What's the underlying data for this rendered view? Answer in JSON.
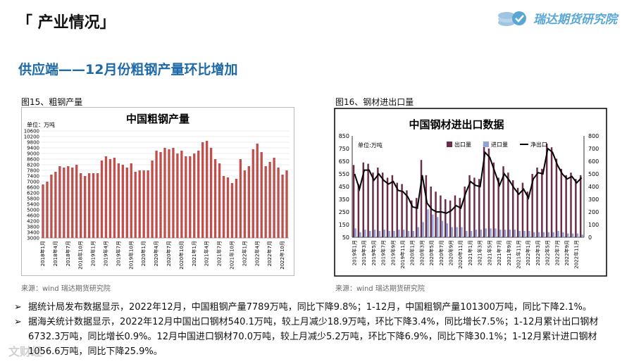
{
  "header": {
    "title": "「 产业情况」"
  },
  "logo": {
    "name": "瑞达期货研究院"
  },
  "subtitle": "供应端——12月份粗钢产量环比增加",
  "figures": [
    {
      "caption": "图15、粗钢产量",
      "source": "来源：wind   瑞达期货研究院"
    },
    {
      "caption": "图16、钢材进出口量",
      "source": "来源：wind   瑞达期货研究院"
    }
  ],
  "chart_data": [
    {
      "type": "bar",
      "title": "中国粗钢产量",
      "unit_label": "单位：万吨",
      "ylim": [
        3000,
        10600
      ],
      "yticks": [
        3000,
        3400,
        3800,
        4200,
        4600,
        5000,
        5400,
        5800,
        6200,
        6600,
        7000,
        7400,
        7800,
        8200,
        8600,
        9000,
        9400,
        9800,
        10200,
        10600
      ],
      "ytick_labels": [
        "3000",
        "3400",
        "3800",
        "4200",
        "4600",
        "5000",
        "5400",
        "5800",
        "6200",
        "6600",
        "7000",
        "7400",
        "7800",
        "8200",
        "8600",
        "9000",
        "9400",
        "9800",
        "10200",
        "10600"
      ],
      "xtick_labels": [
        "2018年1月",
        "2018年4月",
        "2018年7月",
        "2018年10月",
        "2019年1月",
        "2019年4月",
        "2019年7月",
        "2019年10月",
        "2020年1月",
        "2020年4月",
        "2020年7月",
        "2020年10月",
        "2021年1月",
        "2021年4月",
        "2021年7月",
        "2021年10月",
        "2022年1月",
        "2022年4月",
        "2022年7月",
        "2022年10月"
      ],
      "colors": {
        "bar": "#c0504d",
        "bg": "#ffffff"
      },
      "values": [
        6800,
        7000,
        7500,
        7700,
        8100,
        8000,
        8100,
        8000,
        8200,
        7600,
        7400,
        7600,
        7600,
        7600,
        8500,
        8800,
        8600,
        8700,
        8300,
        8200,
        8000,
        8300,
        7700,
        7800,
        7800,
        7800,
        8500,
        9200,
        9100,
        9400,
        9300,
        9400,
        9000,
        9200,
        8800,
        8800,
        9000,
        9200,
        9800,
        9900,
        9400,
        8600,
        8300,
        7400,
        7300,
        6900,
        7200,
        8600,
        7800,
        8100,
        9300,
        9700,
        9100,
        8100,
        8400,
        8700,
        8000,
        7500,
        7800
      ]
    },
    {
      "type": "bar+line",
      "title": "中国钢材进出口数据",
      "unit_label": "单位:万吨",
      "left_ylim": [
        50,
        850
      ],
      "left_yticks": [
        50,
        150,
        250,
        350,
        450,
        550,
        650,
        750,
        850
      ],
      "left_ytick_labels": [
        "50",
        "150",
        "250",
        "350",
        "450",
        "550",
        "650",
        "750",
        "850"
      ],
      "right_ylim": [
        0,
        800
      ],
      "right_yticks": [
        0,
        100,
        200,
        300,
        400,
        500,
        600,
        700,
        800
      ],
      "right_ytick_labels": [
        "0",
        "100",
        "200",
        "300",
        "400",
        "500",
        "600",
        "700",
        "800"
      ],
      "legend": [
        "出口量",
        "进口量",
        "净出口"
      ],
      "colors": {
        "export": "#6b2c4a",
        "import": "#8ea3d8",
        "net": "#000000"
      },
      "xtick_labels": [
        "2019年1月",
        "2019年3月",
        "2019年5月",
        "2019年7月",
        "2019年9月",
        "2019年11月",
        "2020年1月",
        "2020年3月",
        "2020年5月",
        "2020年7月",
        "2020年9月",
        "2020年11月",
        "2021年1月",
        "2021年3月",
        "2021年5月",
        "2021年7月",
        "2021年9月",
        "2021年11月",
        "2022年1月",
        "2022年3月",
        "2022年5月",
        "2022年7月",
        "2022年9月",
        "2022年11月"
      ],
      "series": [
        {
          "name": "出口量",
          "values": [
            620,
            470,
            640,
            630,
            560,
            600,
            560,
            520,
            540,
            480,
            470,
            420,
            340,
            360,
            660,
            540,
            450,
            410,
            380,
            350,
            340,
            380,
            360,
            450,
            540,
            520,
            510,
            790,
            750,
            640,
            520,
            610,
            560,
            500,
            440,
            480,
            410,
            550,
            600,
            590,
            790,
            760,
            670,
            590,
            540,
            560,
            510,
            540
          ]
        },
        {
          "name": "进口量",
          "values": [
            120,
            90,
            110,
            100,
            110,
            100,
            110,
            100,
            100,
            110,
            110,
            100,
            100,
            130,
            170,
            270,
            230,
            210,
            180,
            160,
            130,
            130,
            130,
            100,
            100,
            110,
            110,
            120,
            120,
            120,
            110,
            110,
            110,
            110,
            100,
            100,
            100,
            90,
            90,
            90,
            90,
            90,
            100,
            90,
            80,
            80,
            80,
            70
          ]
        },
        {
          "name": "净出口",
          "values": [
            500,
            380,
            530,
            530,
            450,
            500,
            450,
            420,
            440,
            370,
            360,
            320,
            240,
            230,
            490,
            270,
            220,
            200,
            200,
            190,
            210,
            250,
            230,
            350,
            440,
            410,
            400,
            670,
            630,
            520,
            410,
            500,
            450,
            390,
            340,
            380,
            310,
            460,
            510,
            500,
            700,
            670,
            570,
            500,
            460,
            480,
            430,
            470
          ]
        }
      ]
    }
  ],
  "bullets": [
    "据统计局发布数据显示，2022年12月，中国粗钢产量7789万吨，同比下降9.8%；1-12月，中国粗钢产量101300万吨，同比下降2.1%。",
    "据海关统计数据显示，2022年12月中国出口钢材540.1万吨，较上月减少18.9万吨，环比下降3.4%，同比增长7.5%；1-12月累计出口钢材6732.3万吨，同比增长0.9%。12月中国进口钢材70.0万吨，较上月减少5.2万吨，环比下降6.9%，同比下降30.1%；1-12月累计进口钢材1056.6万吨，同比下降25.9%。"
  ],
  "watermark": "文财经"
}
